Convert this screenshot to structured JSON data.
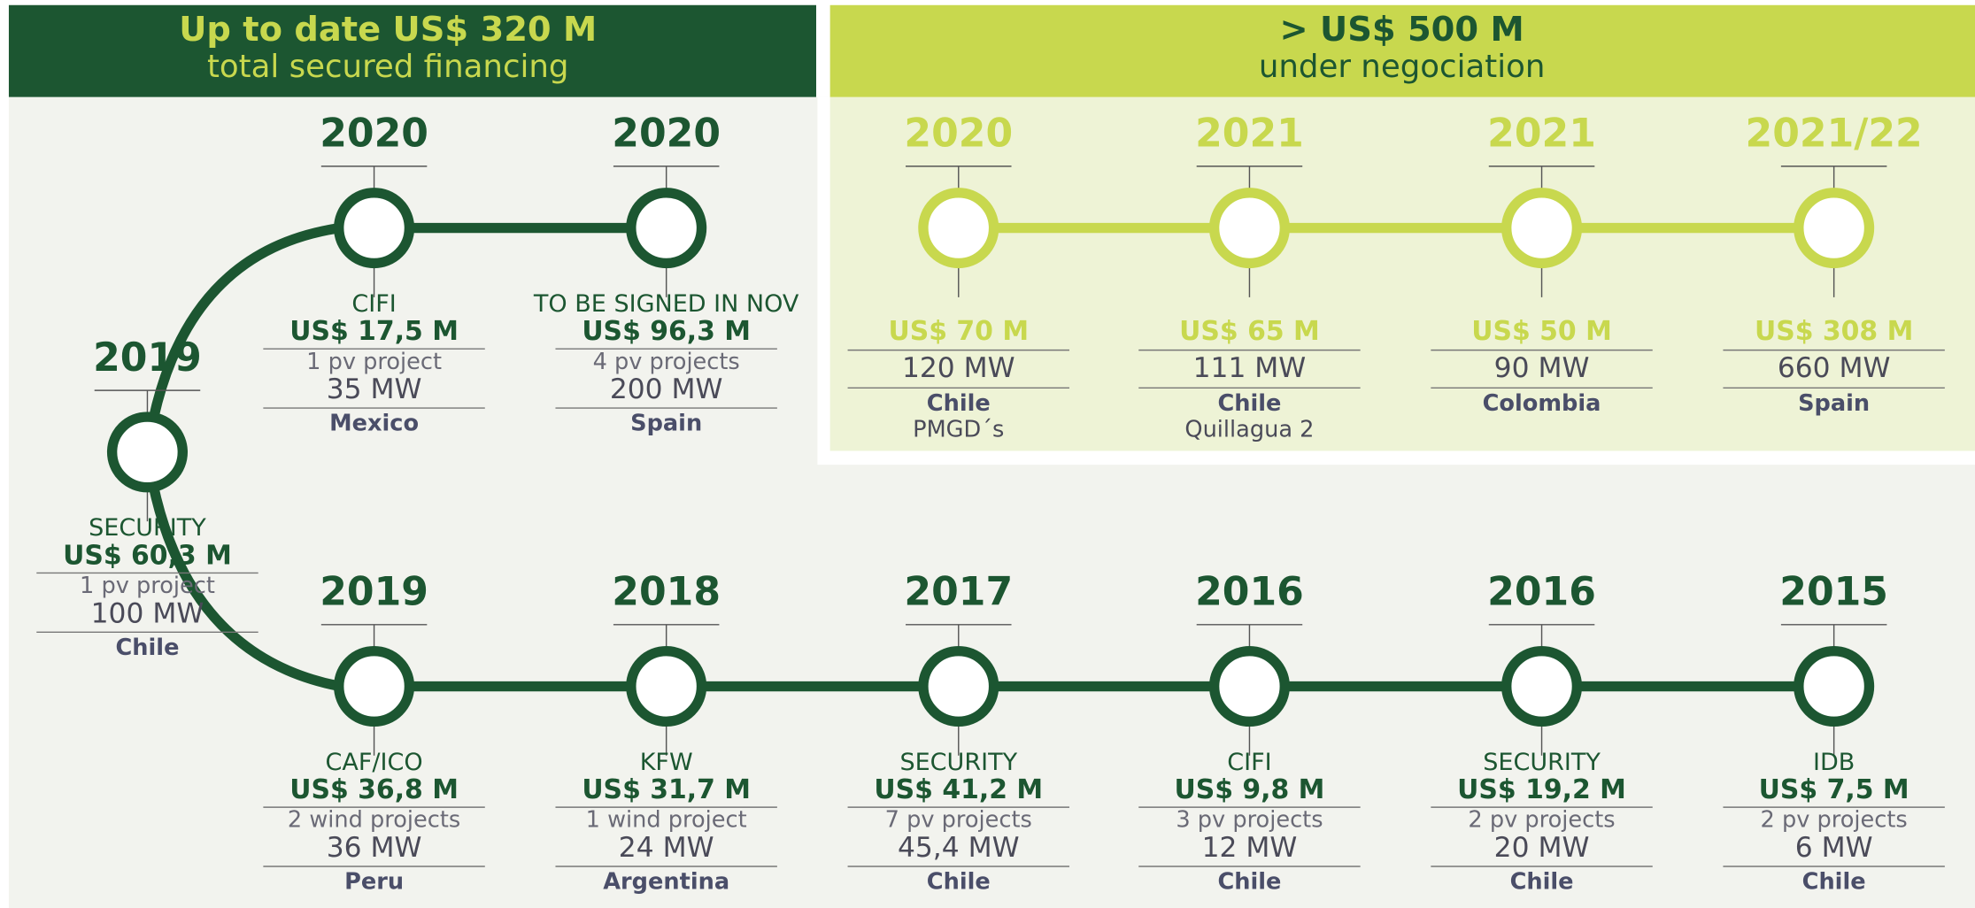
{
  "header": {
    "secured": {
      "title": "Up to date US$ 320 M",
      "subtitle": "total secured financing"
    },
    "negotiation": {
      "title": "> US$ 500 M",
      "subtitle": "under negociation"
    }
  },
  "secured_milestones": [
    {
      "year": "2015",
      "lender": "IDB",
      "amount": "US$ 7,5 M",
      "detail": "2 pv projects",
      "capacity": "6 MW",
      "country": "Chile"
    },
    {
      "year": "2016",
      "lender": "SECURITY",
      "amount": "US$ 19,2 M",
      "detail": "2 pv projects",
      "capacity": "20 MW",
      "country": "Chile"
    },
    {
      "year": "2016",
      "lender": "CIFI",
      "amount": "US$ 9,8 M",
      "detail": "3 pv projects",
      "capacity": "12 MW",
      "country": "Chile"
    },
    {
      "year": "2017",
      "lender": "SECURITY",
      "amount": "US$ 41,2 M",
      "detail": "7 pv projects",
      "capacity": "45,4 MW",
      "country": "Chile"
    },
    {
      "year": "2018",
      "lender": "KFW",
      "amount": "US$ 31,7 M",
      "detail": "1 wind project",
      "capacity": "24 MW",
      "country": "Argentina"
    },
    {
      "year": "2019",
      "lender": "CAF/ICO",
      "amount": "US$ 36,8 M",
      "detail": "2 wind projects",
      "capacity": "36 MW",
      "country": "Peru"
    },
    {
      "year": "2019",
      "lender": "SECURITY",
      "amount": "US$ 60,3 M",
      "detail": "1 pv project",
      "capacity": "100 MW",
      "country": "Chile"
    },
    {
      "year": "2020",
      "lender": "CIFI",
      "amount": "US$ 17,5 M",
      "detail": "1 pv project",
      "capacity": "35 MW",
      "country": "Mexico"
    },
    {
      "year": "2020",
      "lender": "TO BE SIGNED IN NOV",
      "amount": "US$ 96,3 M",
      "detail": "4 pv projects",
      "capacity": "200 MW",
      "country": "Spain"
    }
  ],
  "negotiation_milestones": [
    {
      "year": "2020",
      "amount": "US$ 70 M",
      "capacity": "120 MW",
      "country": "Chile",
      "sub": "PMGD´s"
    },
    {
      "year": "2021",
      "amount": "US$ 65 M",
      "capacity": "111 MW",
      "country": "Chile",
      "sub": "Quillagua 2"
    },
    {
      "year": "2021",
      "amount": "US$ 50 M",
      "capacity": "90 MW",
      "country": "Colombia"
    },
    {
      "year": "2021/22",
      "amount": "US$ 308 M",
      "capacity": "660 MW",
      "country": "Spain"
    }
  ]
}
